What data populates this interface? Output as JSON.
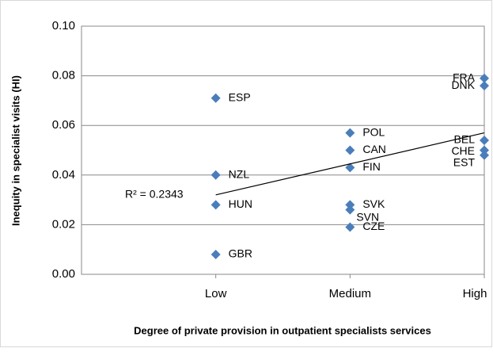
{
  "chart_data": {
    "type": "scatter",
    "xlabel": "Degree of private provision in outpatient specialists services",
    "ylabel": "Inequity in specialist visits (HI)",
    "xlim": [
      0,
      3
    ],
    "xticks": [
      {
        "value": 1,
        "label": "Low"
      },
      {
        "value": 2,
        "label": "Medium"
      },
      {
        "value": 3,
        "label": "High"
      }
    ],
    "ylim": [
      0,
      0.1
    ],
    "yticks": [
      {
        "value": 0,
        "label": "0.00"
      },
      {
        "value": 0.02,
        "label": "0.02"
      },
      {
        "value": 0.04,
        "label": "0.04"
      },
      {
        "value": 0.06,
        "label": "0.06"
      },
      {
        "value": 0.08,
        "label": "0.08"
      },
      {
        "value": 0.1,
        "label": "0.10"
      }
    ],
    "grid": true,
    "series": [
      {
        "color": "#4a7ebb",
        "labels": [
          "ESP",
          "NZL",
          "HUN",
          "GBR",
          "POL",
          "CAN",
          "FIN",
          "SVK",
          "SVN",
          "CZE",
          "FRA",
          "DNK",
          "BEL",
          "CHE",
          "EST"
        ],
        "x": [
          1,
          1,
          1,
          1,
          2,
          2,
          2,
          2,
          2,
          2,
          3,
          3,
          3,
          3,
          3
        ],
        "values": [
          0.071,
          0.04,
          0.028,
          0.008,
          0.057,
          0.05,
          0.043,
          0.028,
          0.026,
          0.019,
          0.079,
          0.076,
          0.054,
          0.05,
          0.048
        ]
      }
    ],
    "trendline": {
      "x": [
        1,
        3
      ],
      "values": [
        0.032,
        0.057
      ],
      "color": "#000000",
      "label": "R² = 0.2343"
    }
  }
}
